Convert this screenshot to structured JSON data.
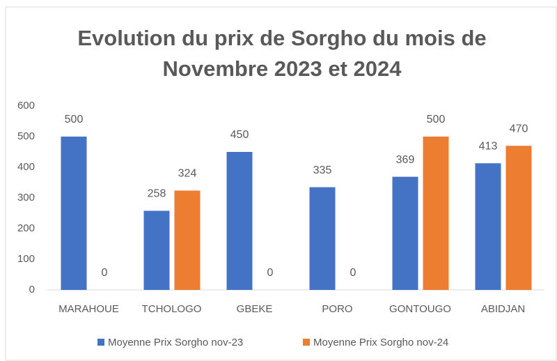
{
  "chart_data": {
    "type": "bar",
    "title": [
      "Evolution du prix de Sorgho du mois de",
      "Novembre 2023 et 2024"
    ],
    "categories": [
      "MARAHOUE",
      "TCHOLOGO",
      "GBEKE",
      "PORO",
      "GONTOUGO",
      "ABIDJAN"
    ],
    "series": [
      {
        "name": "Moyenne Prix Sorgho nov-23",
        "color": "#4472c4",
        "values": [
          500,
          258,
          450,
          335,
          369,
          413
        ]
      },
      {
        "name": "Moyenne Prix Sorgho nov-24",
        "color": "#ed7d31",
        "values": [
          0,
          324,
          0,
          0,
          500,
          470
        ]
      }
    ],
    "ylim": [
      0,
      600
    ],
    "yticks": [
      0,
      100,
      200,
      300,
      400,
      500,
      600
    ],
    "grid": false,
    "legend": "bottom"
  }
}
